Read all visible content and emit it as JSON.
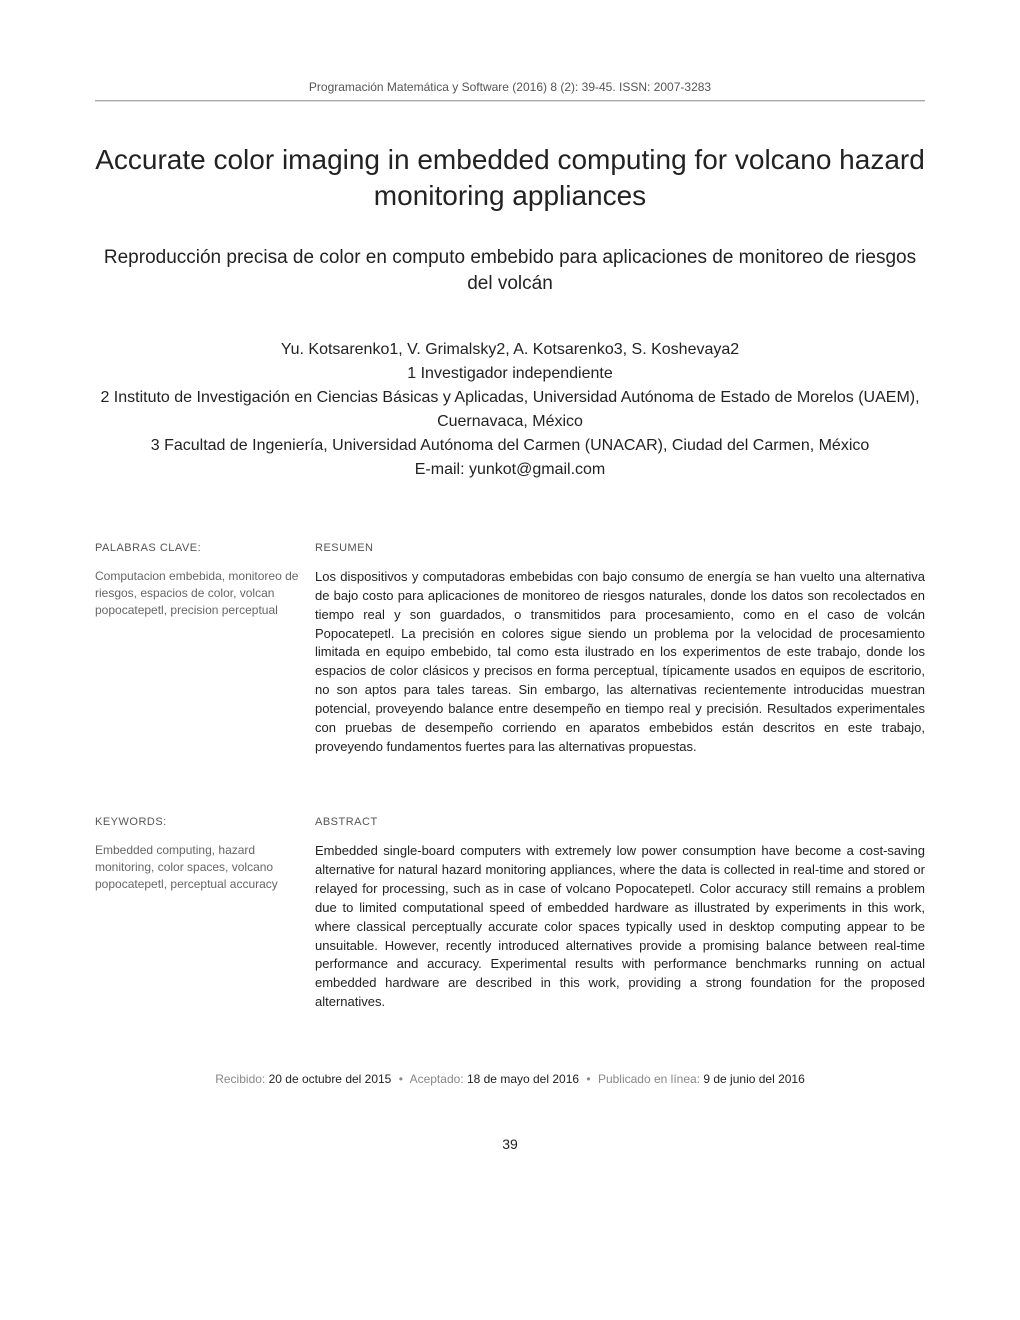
{
  "journal_header": "Programación Matemática y Software (2016) 8 (2): 39-45. ISSN: 2007-3283",
  "title_en": "Accurate color imaging in embedded computing for volcano hazard monitoring appliances",
  "title_es": "Reproducción precisa de color en computo embebido para aplicaciones de monitoreo de riesgos del volcán",
  "authors_line": "Yu. Kotsarenko1, V. Grimalsky2, A. Kotsarenko3, S. Koshevaya2",
  "affiliation_1": "1 Investigador independiente",
  "affiliation_2": "2 Instituto de Investigación en Ciencias Básicas y Aplicadas, Universidad Autónoma de Estado de Morelos (UAEM), Cuernavaca, México",
  "affiliation_3": "3 Facultad de Ingeniería, Universidad Autónoma del Carmen (UNACAR), Ciudad del Carmen, México",
  "email": "E-mail: yunkot@gmail.com",
  "palabras_clave_label": "PALABRAS CLAVE:",
  "palabras_clave_text": "Computacion embebida, monitoreo de riesgos, espacios de color, volcan popocatepetl, precision perceptual",
  "resumen_label": "RESUMEN",
  "resumen_text": "Los dispositivos y computadoras embebidas con bajo consumo de energía se han vuelto una alternativa de bajo costo para aplicaciones de monitoreo de riesgos naturales, donde los datos son recolectados en tiempo real y son guardados, o transmitidos para procesamiento, como en el caso de volcán Popocatepetl. La precisión en colores sigue siendo un problema por la velocidad de procesamiento limitada en equipo embebido, tal como esta ilustrado en los experimentos de este trabajo, donde los espacios de color clásicos y precisos en forma perceptual, típicamente usados en equipos de escritorio, no son aptos para tales tareas. Sin embargo, las alternativas recientemente introducidas muestran potencial, proveyendo balance entre desempeño en tiempo real y precisión. Resultados experimentales con pruebas de desempeño corriendo en aparatos embebidos están descritos en este trabajo, proveyendo fundamentos fuertes para las alternativas propuestas.",
  "keywords_label": "KEYWORDS:",
  "keywords_text": "Embedded computing, hazard monitoring, color spaces, volcano popocatepetl, perceptual accuracy",
  "abstract_label": "ABSTRACT",
  "abstract_text": "Embedded single-board computers with extremely low power consumption have become a cost-saving alternative for natural hazard monitoring appliances, where the data is collected in real-time and stored or relayed for processing, such as in case of volcano Popocatepetl. Color accuracy still remains a problem due to limited computational speed of embedded hardware as illustrated by experiments in this work, where classical perceptually accurate color spaces typically used in desktop computing appear to be unsuitable. However, recently introduced alternatives provide a promising balance between real-time performance and accuracy. Experimental results with performance benchmarks running on actual embedded hardware are described in this work, providing a strong foundation for the proposed alternatives.",
  "recibido_label": "Recibido: ",
  "recibido_value": "20 de octubre del 2015",
  "aceptado_label": "Aceptado: ",
  "aceptado_value": "18 de mayo del 2016",
  "publicado_label": "Publicado en línea: ",
  "publicado_value": "9 de junio del 2016",
  "page_number": "39"
}
